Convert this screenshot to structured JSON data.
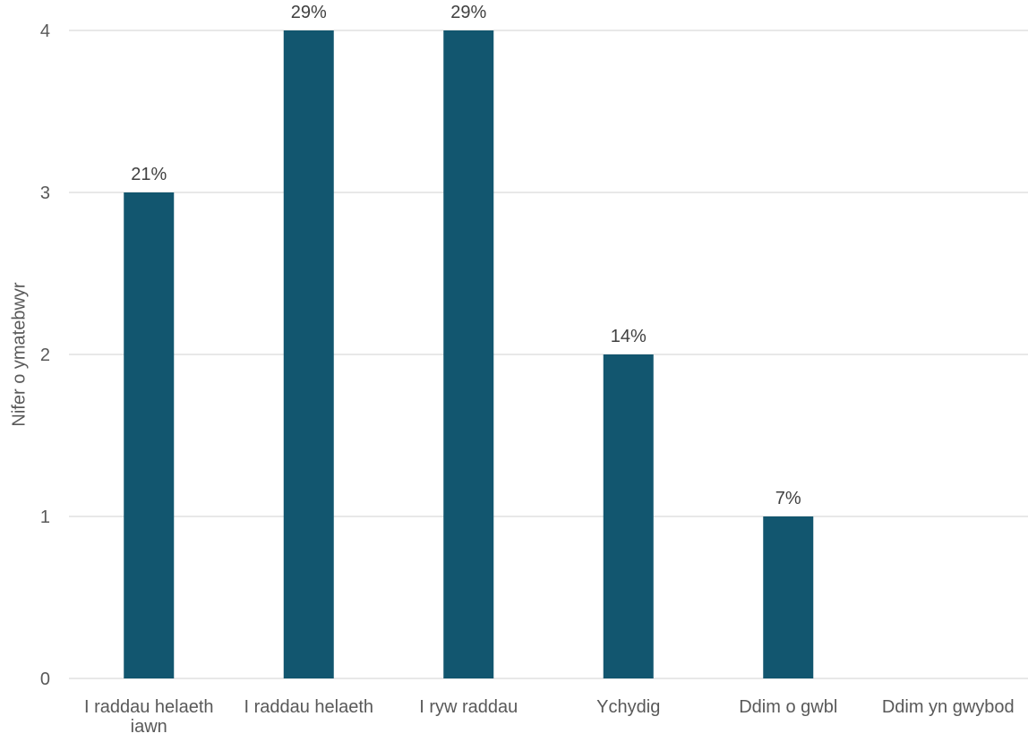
{
  "chart_data": {
    "type": "bar",
    "title": "",
    "xlabel": "",
    "ylabel": "Nifer o ymatebwyr",
    "categories": [
      "I raddau helaeth iawn",
      "I raddau helaeth",
      "I ryw raddau",
      "Ychydig",
      "Ddim o gwbl",
      "Ddim yn gwybod"
    ],
    "values": [
      3,
      4,
      4,
      2,
      1,
      0
    ],
    "data_labels": [
      "21%",
      "29%",
      "29%",
      "14%",
      "7%",
      ""
    ],
    "yticks": [
      "0",
      "1",
      "2",
      "3",
      "4"
    ],
    "ylim": [
      0,
      4
    ],
    "grid": true,
    "legend": "none",
    "colors": {
      "bar": "#12566f",
      "grid": "#d9d9d9",
      "text": "#595959",
      "label": "#404040"
    }
  }
}
